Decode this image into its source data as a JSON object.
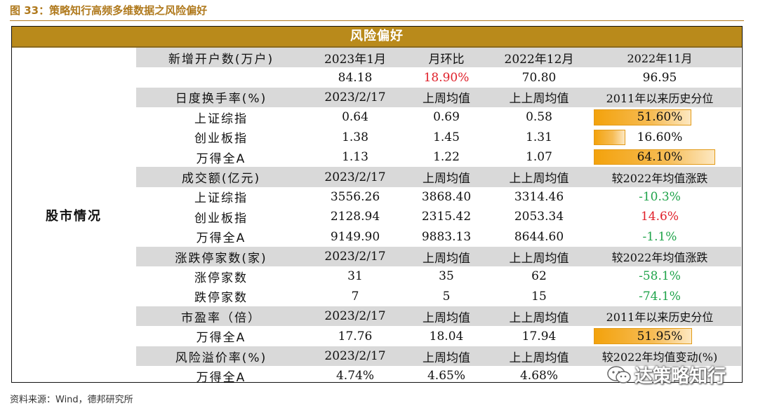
{
  "figure_title": "图 33：策略知行高频多维数据之风险偏好",
  "banner": "风险偏好",
  "section_label": "股市情况",
  "rows": [
    {
      "gray": true,
      "cells": [
        "新增开户数(万户)",
        "2023年1月",
        "月环比",
        "2022年12月",
        "2022年11月"
      ]
    },
    {
      "gray": false,
      "cells": [
        "",
        "84.18",
        "18.90%",
        "70.80",
        "96.95"
      ],
      "colors": [
        "",
        "",
        "red",
        "",
        ""
      ]
    },
    {
      "gray": true,
      "cells": [
        "日度换手率(%)",
        "2023/2/17",
        "上周均值",
        "上上周均值",
        "2011年以来历史分位"
      ]
    },
    {
      "gray": false,
      "cells": [
        "上证综指",
        "0.64",
        "0.69",
        "0.58",
        "51.60%"
      ],
      "bar": 0.516
    },
    {
      "gray": false,
      "cells": [
        "创业板指",
        "1.38",
        "1.45",
        "1.31",
        "16.60%"
      ],
      "bar": 0.166
    },
    {
      "gray": false,
      "cells": [
        "万得全A",
        "1.13",
        "1.22",
        "1.07",
        "64.10%"
      ],
      "bar": 0.641
    },
    {
      "gray": true,
      "cells": [
        "成交额(亿元)",
        "2023/2/17",
        "上周均值",
        "上上周均值",
        "较2022年均值涨跌"
      ]
    },
    {
      "gray": false,
      "cells": [
        "上证综指",
        "3556.26",
        "3868.40",
        "3314.46",
        "-10.3%"
      ],
      "colors": [
        "",
        "",
        "",
        "",
        "green"
      ]
    },
    {
      "gray": false,
      "cells": [
        "创业板指",
        "2128.94",
        "2315.42",
        "2053.34",
        "14.6%"
      ],
      "colors": [
        "",
        "",
        "",
        "",
        "red"
      ]
    },
    {
      "gray": false,
      "cells": [
        "万得全A",
        "9149.90",
        "9883.13",
        "8644.60",
        "-1.1%"
      ],
      "colors": [
        "",
        "",
        "",
        "",
        "green"
      ]
    },
    {
      "gray": true,
      "cells": [
        "涨跌停家数(家)",
        "2023/2/17",
        "上周均值",
        "上上周均值",
        "较2022年均值涨跌"
      ]
    },
    {
      "gray": false,
      "cells": [
        "涨停家数",
        "31",
        "35",
        "62",
        "-58.1%"
      ],
      "colors": [
        "",
        "",
        "",
        "",
        "green"
      ]
    },
    {
      "gray": false,
      "cells": [
        "跌停家数",
        "7",
        "5",
        "15",
        "-74.1%"
      ],
      "colors": [
        "",
        "",
        "",
        "",
        "green"
      ]
    },
    {
      "gray": true,
      "cells": [
        "市盈率（倍）",
        "2023/2/17",
        "上周均值",
        "上上周均值",
        "2011年以来历史分位"
      ]
    },
    {
      "gray": false,
      "cells": [
        "万得全A",
        "17.76",
        "18.04",
        "17.94",
        "51.95%"
      ],
      "bar": 0.5195
    },
    {
      "gray": true,
      "cells": [
        "风险溢价率(%)",
        "2023/2/17",
        "上周均值",
        "上上周均值",
        "较2022年均值变动(%)"
      ]
    },
    {
      "gray": false,
      "cells": [
        "万得全A",
        "4.74%",
        "4.65%",
        "4.68%",
        ""
      ]
    }
  ],
  "source": "资料来源：Wind，德邦研究所",
  "watermark": "达策略知行",
  "colors": {
    "banner": "#b98a1b",
    "header_row": "#d9d9d9",
    "up": "#e0202a",
    "down": "#1fa34a",
    "bar": "#f3a20c"
  }
}
